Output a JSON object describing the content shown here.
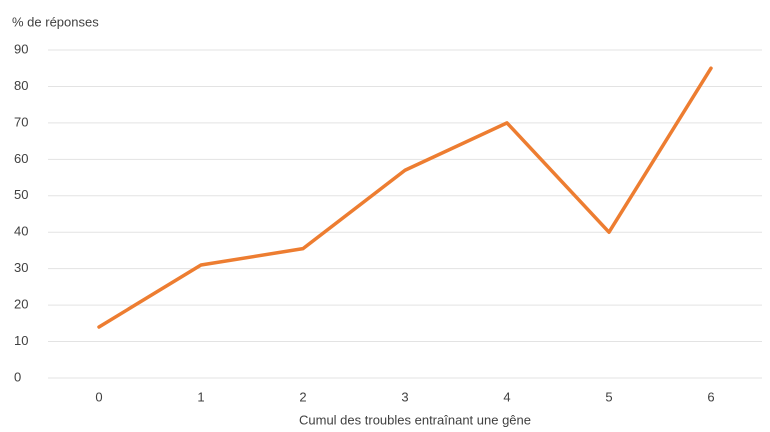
{
  "chart_data": {
    "type": "line",
    "y_axis_label": "% de réponses",
    "x_axis_label": "Cumul des troubles entraînant une gêne",
    "categories": [
      "0",
      "1",
      "2",
      "3",
      "4",
      "5",
      "6"
    ],
    "series": [
      {
        "name": null,
        "color": "#ed7d31",
        "values": [
          14,
          31,
          35.5,
          57,
          70,
          40,
          85
        ]
      }
    ],
    "ylim": [
      0,
      90
    ],
    "yticks": [
      0,
      10,
      20,
      30,
      40,
      50,
      60,
      70,
      80,
      90
    ],
    "grid": true
  }
}
